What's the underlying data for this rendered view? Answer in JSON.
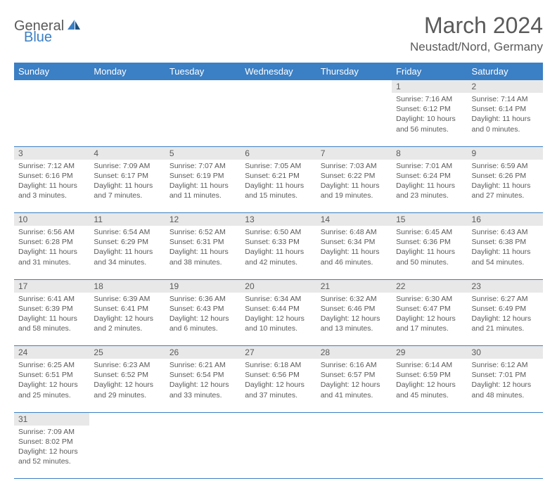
{
  "logo": {
    "general": "General",
    "blue": "Blue"
  },
  "title": "March 2024",
  "location": "Neustadt/Nord, Germany",
  "columns": [
    "Sunday",
    "Monday",
    "Tuesday",
    "Wednesday",
    "Thursday",
    "Friday",
    "Saturday"
  ],
  "colors": {
    "header_bg": "#3b7fc4",
    "header_text": "#ffffff",
    "daynum_bg": "#e8e8e8",
    "cell_border": "#3b7fc4",
    "text": "#5a5a5a",
    "logo_blue": "#3b7fc4"
  },
  "weeks": [
    [
      null,
      null,
      null,
      null,
      null,
      {
        "n": "1",
        "sr": "Sunrise: 7:16 AM",
        "ss": "Sunset: 6:12 PM",
        "dl": "Daylight: 10 hours and 56 minutes."
      },
      {
        "n": "2",
        "sr": "Sunrise: 7:14 AM",
        "ss": "Sunset: 6:14 PM",
        "dl": "Daylight: 11 hours and 0 minutes."
      }
    ],
    [
      {
        "n": "3",
        "sr": "Sunrise: 7:12 AM",
        "ss": "Sunset: 6:16 PM",
        "dl": "Daylight: 11 hours and 3 minutes."
      },
      {
        "n": "4",
        "sr": "Sunrise: 7:09 AM",
        "ss": "Sunset: 6:17 PM",
        "dl": "Daylight: 11 hours and 7 minutes."
      },
      {
        "n": "5",
        "sr": "Sunrise: 7:07 AM",
        "ss": "Sunset: 6:19 PM",
        "dl": "Daylight: 11 hours and 11 minutes."
      },
      {
        "n": "6",
        "sr": "Sunrise: 7:05 AM",
        "ss": "Sunset: 6:21 PM",
        "dl": "Daylight: 11 hours and 15 minutes."
      },
      {
        "n": "7",
        "sr": "Sunrise: 7:03 AM",
        "ss": "Sunset: 6:22 PM",
        "dl": "Daylight: 11 hours and 19 minutes."
      },
      {
        "n": "8",
        "sr": "Sunrise: 7:01 AM",
        "ss": "Sunset: 6:24 PM",
        "dl": "Daylight: 11 hours and 23 minutes."
      },
      {
        "n": "9",
        "sr": "Sunrise: 6:59 AM",
        "ss": "Sunset: 6:26 PM",
        "dl": "Daylight: 11 hours and 27 minutes."
      }
    ],
    [
      {
        "n": "10",
        "sr": "Sunrise: 6:56 AM",
        "ss": "Sunset: 6:28 PM",
        "dl": "Daylight: 11 hours and 31 minutes."
      },
      {
        "n": "11",
        "sr": "Sunrise: 6:54 AM",
        "ss": "Sunset: 6:29 PM",
        "dl": "Daylight: 11 hours and 34 minutes."
      },
      {
        "n": "12",
        "sr": "Sunrise: 6:52 AM",
        "ss": "Sunset: 6:31 PM",
        "dl": "Daylight: 11 hours and 38 minutes."
      },
      {
        "n": "13",
        "sr": "Sunrise: 6:50 AM",
        "ss": "Sunset: 6:33 PM",
        "dl": "Daylight: 11 hours and 42 minutes."
      },
      {
        "n": "14",
        "sr": "Sunrise: 6:48 AM",
        "ss": "Sunset: 6:34 PM",
        "dl": "Daylight: 11 hours and 46 minutes."
      },
      {
        "n": "15",
        "sr": "Sunrise: 6:45 AM",
        "ss": "Sunset: 6:36 PM",
        "dl": "Daylight: 11 hours and 50 minutes."
      },
      {
        "n": "16",
        "sr": "Sunrise: 6:43 AM",
        "ss": "Sunset: 6:38 PM",
        "dl": "Daylight: 11 hours and 54 minutes."
      }
    ],
    [
      {
        "n": "17",
        "sr": "Sunrise: 6:41 AM",
        "ss": "Sunset: 6:39 PM",
        "dl": "Daylight: 11 hours and 58 minutes."
      },
      {
        "n": "18",
        "sr": "Sunrise: 6:39 AM",
        "ss": "Sunset: 6:41 PM",
        "dl": "Daylight: 12 hours and 2 minutes."
      },
      {
        "n": "19",
        "sr": "Sunrise: 6:36 AM",
        "ss": "Sunset: 6:43 PM",
        "dl": "Daylight: 12 hours and 6 minutes."
      },
      {
        "n": "20",
        "sr": "Sunrise: 6:34 AM",
        "ss": "Sunset: 6:44 PM",
        "dl": "Daylight: 12 hours and 10 minutes."
      },
      {
        "n": "21",
        "sr": "Sunrise: 6:32 AM",
        "ss": "Sunset: 6:46 PM",
        "dl": "Daylight: 12 hours and 13 minutes."
      },
      {
        "n": "22",
        "sr": "Sunrise: 6:30 AM",
        "ss": "Sunset: 6:47 PM",
        "dl": "Daylight: 12 hours and 17 minutes."
      },
      {
        "n": "23",
        "sr": "Sunrise: 6:27 AM",
        "ss": "Sunset: 6:49 PM",
        "dl": "Daylight: 12 hours and 21 minutes."
      }
    ],
    [
      {
        "n": "24",
        "sr": "Sunrise: 6:25 AM",
        "ss": "Sunset: 6:51 PM",
        "dl": "Daylight: 12 hours and 25 minutes."
      },
      {
        "n": "25",
        "sr": "Sunrise: 6:23 AM",
        "ss": "Sunset: 6:52 PM",
        "dl": "Daylight: 12 hours and 29 minutes."
      },
      {
        "n": "26",
        "sr": "Sunrise: 6:21 AM",
        "ss": "Sunset: 6:54 PM",
        "dl": "Daylight: 12 hours and 33 minutes."
      },
      {
        "n": "27",
        "sr": "Sunrise: 6:18 AM",
        "ss": "Sunset: 6:56 PM",
        "dl": "Daylight: 12 hours and 37 minutes."
      },
      {
        "n": "28",
        "sr": "Sunrise: 6:16 AM",
        "ss": "Sunset: 6:57 PM",
        "dl": "Daylight: 12 hours and 41 minutes."
      },
      {
        "n": "29",
        "sr": "Sunrise: 6:14 AM",
        "ss": "Sunset: 6:59 PM",
        "dl": "Daylight: 12 hours and 45 minutes."
      },
      {
        "n": "30",
        "sr": "Sunrise: 6:12 AM",
        "ss": "Sunset: 7:01 PM",
        "dl": "Daylight: 12 hours and 48 minutes."
      }
    ],
    [
      {
        "n": "31",
        "sr": "Sunrise: 7:09 AM",
        "ss": "Sunset: 8:02 PM",
        "dl": "Daylight: 12 hours and 52 minutes."
      },
      null,
      null,
      null,
      null,
      null,
      null
    ]
  ]
}
